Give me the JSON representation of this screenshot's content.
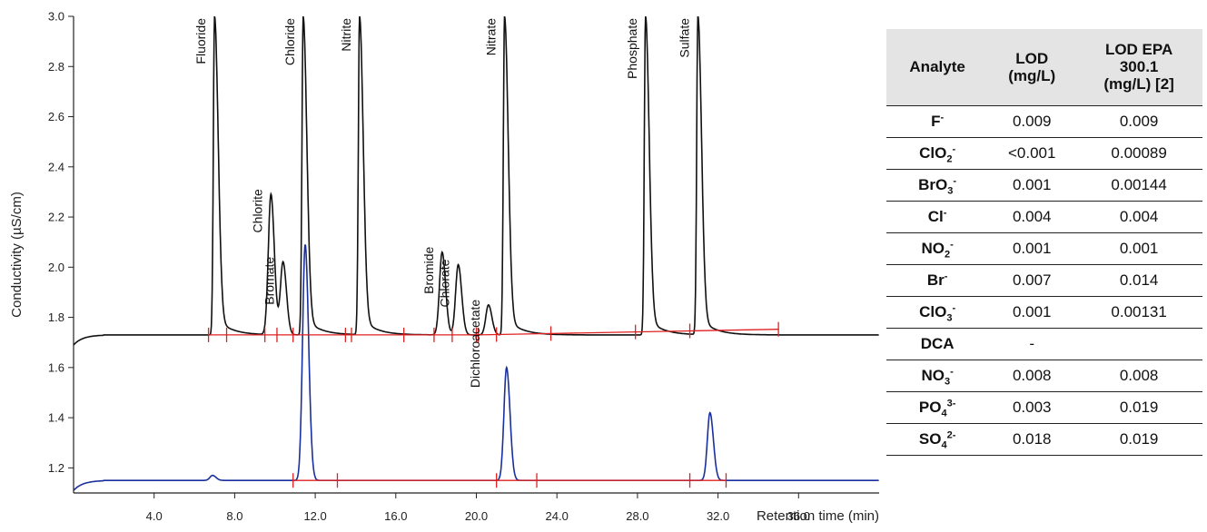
{
  "chart_data": {
    "type": "line",
    "xlabel": "Retention time (min)",
    "ylabel": "Conductivity (µS/cm)",
    "xlim": [
      0,
      40
    ],
    "ylim": [
      1.1,
      3.0
    ],
    "x_ticks": [
      "4.0",
      "8.0",
      "12.0",
      "16.0",
      "20.0",
      "24.0",
      "28.0",
      "32.0",
      "36.0"
    ],
    "y_ticks": [
      "1.2",
      "1.4",
      "1.6",
      "1.8",
      "2.0",
      "2.2",
      "2.4",
      "2.6",
      "2.8",
      "3.0"
    ],
    "grid": false,
    "series": [
      {
        "color": "#111111",
        "baseline": 1.73,
        "peaks": [
          {
            "label": "Fluoride",
            "rt": 7.0,
            "height": 3.0
          },
          {
            "label": "Chlorite",
            "rt": 9.8,
            "height": 2.29
          },
          {
            "label": "Bromate",
            "rt": 10.4,
            "height": 2.02
          },
          {
            "label": "Chloride",
            "rt": 11.4,
            "height": 3.0
          },
          {
            "label": "Nitrite",
            "rt": 14.2,
            "height": 3.0
          },
          {
            "label": "Bromide",
            "rt": 18.3,
            "height": 2.06
          },
          {
            "label": "Chlorate",
            "rt": 19.1,
            "height": 2.01
          },
          {
            "label": "Dichloroacetate",
            "rt": 20.6,
            "height": 1.85
          },
          {
            "label": "Nitrate",
            "rt": 21.4,
            "height": 3.0
          },
          {
            "label": "Phosphate",
            "rt": 28.4,
            "height": 3.0
          },
          {
            "label": "Sulfate",
            "rt": 31.0,
            "height": 3.0
          }
        ]
      },
      {
        "color": "#1a2f9e",
        "baseline": 1.15,
        "peaks": [
          {
            "rt": 6.9,
            "height": 1.17
          },
          {
            "rt": 11.5,
            "height": 2.09
          },
          {
            "rt": 21.5,
            "height": 1.6
          },
          {
            "rt": 31.6,
            "height": 1.42
          }
        ]
      }
    ],
    "integration_markers": {
      "color": "#e02020",
      "black_trace": [
        6.7,
        7.6,
        9.5,
        10.1,
        10.9,
        13.5,
        13.8,
        16.4,
        17.9,
        18.8,
        20.0,
        20.1,
        21.0,
        23.7,
        27.9,
        30.6,
        35.0
      ],
      "blue_trace": [
        10.9,
        13.1,
        21.0,
        23.0,
        30.6,
        32.4
      ]
    }
  },
  "table": {
    "headers": [
      "Analyte",
      "LOD\n(mg/L)",
      "LOD EPA\n300.1\n(mg/L) [2]"
    ],
    "rows": [
      {
        "base": "F",
        "sub": "",
        "sup": "-",
        "lod": "0.009",
        "epa": "0.009"
      },
      {
        "base": "ClO",
        "sub": "2",
        "sup": "-",
        "lod": "<0.001",
        "epa": "0.00089"
      },
      {
        "base": "BrO",
        "sub": "3",
        "sup": "-",
        "lod": "0.001",
        "epa": "0.00144"
      },
      {
        "base": "Cl",
        "sub": "",
        "sup": "-",
        "lod": "0.004",
        "epa": "0.004"
      },
      {
        "base": "NO",
        "sub": "2",
        "sup": "-",
        "lod": "0.001",
        "epa": "0.001"
      },
      {
        "base": "Br",
        "sub": "",
        "sup": "-",
        "lod": "0.007",
        "epa": "0.014"
      },
      {
        "base": "ClO",
        "sub": "3",
        "sup": "-",
        "lod": "0.001",
        "epa": "0.00131"
      },
      {
        "base": "DCA",
        "sub": "",
        "sup": "",
        "lod": "-",
        "epa": ""
      },
      {
        "base": "NO",
        "sub": "3",
        "sup": "-",
        "lod": "0.008",
        "epa": "0.008"
      },
      {
        "base": "PO",
        "sub": "4",
        "sup": "3-",
        "lod": "0.003",
        "epa": "0.019"
      },
      {
        "base": "SO",
        "sub": "4",
        "sup": "2-",
        "lod": "0.018",
        "epa": "0.019"
      }
    ]
  }
}
